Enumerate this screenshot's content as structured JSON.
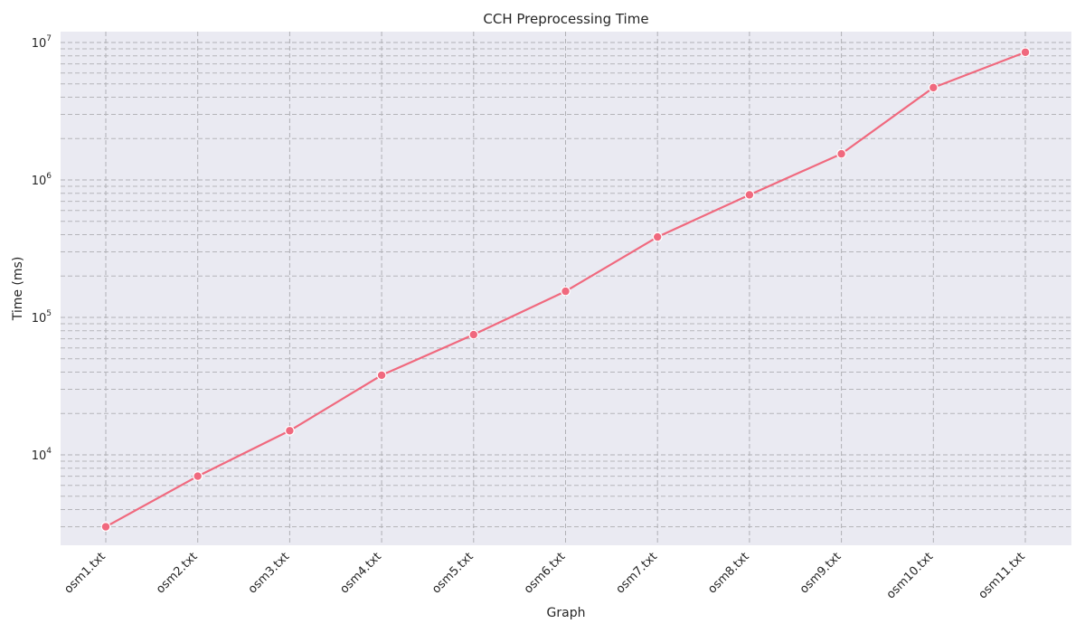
{
  "chart_data": {
    "type": "line",
    "title": "CCH Preprocessing Time",
    "xlabel": "Graph",
    "ylabel": "Time (ms)",
    "yscale": "log",
    "ylim": [
      2200,
      12000000
    ],
    "grid": true,
    "grid_style": "dashed",
    "categories": [
      "osm1.txt",
      "osm2.txt",
      "osm3.txt",
      "osm4.txt",
      "osm5.txt",
      "osm6.txt",
      "osm7.txt",
      "osm8.txt",
      "osm9.txt",
      "osm10.txt",
      "osm11.txt"
    ],
    "series": [
      {
        "values": [
          3000,
          7000,
          15000,
          38000,
          75000,
          155000,
          385000,
          780000,
          1550000,
          4700000,
          8500000
        ],
        "color": "#f0697e",
        "marker": "circle"
      }
    ],
    "y_ticks": [
      {
        "base": "10",
        "exp": "4",
        "value": 10000
      },
      {
        "base": "10",
        "exp": "5",
        "value": 100000
      },
      {
        "base": "10",
        "exp": "6",
        "value": 1000000
      },
      {
        "base": "10",
        "exp": "7",
        "value": 10000000
      }
    ],
    "background_color": "#eaeaf2"
  }
}
